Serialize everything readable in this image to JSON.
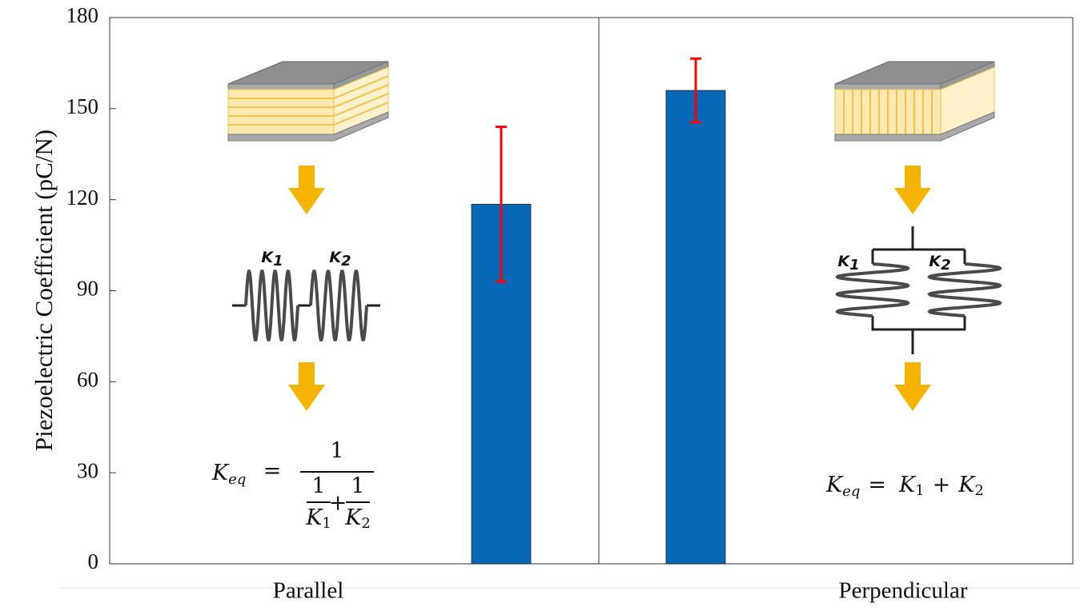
{
  "chart_data": {
    "type": "bar",
    "y_label": "Piezoelectric Coefficient (pC/N)",
    "categories": [
      "Parallel",
      "Perpendicular"
    ],
    "values": [
      118.5,
      156
    ],
    "errors": [
      25.5,
      10.5
    ],
    "color": "#0868b8",
    "error_color": "#ff0000",
    "ylim": [
      0,
      180
    ],
    "yticks": [
      0,
      30,
      60,
      90,
      120,
      150,
      180
    ],
    "grid": false
  },
  "annotations": {
    "parallel": {
      "springs": [
        {
          "base": "K",
          "sub": "1"
        },
        {
          "base": "K",
          "sub": "2"
        }
      ],
      "formula": {
        "lhs": {
          "base": "K",
          "sub": "eq"
        },
        "equals": "=",
        "numerator": "1",
        "plus": "+",
        "denominator_terms": [
          {
            "numerator": "1",
            "base": "K",
            "sub": "1"
          },
          {
            "numerator": "1",
            "base": "K",
            "sub": "2"
          }
        ]
      }
    },
    "perpendicular": {
      "springs": [
        {
          "base": "K",
          "sub": "1"
        },
        {
          "base": "K",
          "sub": "2"
        }
      ],
      "formula": {
        "lhs": {
          "base": "K",
          "sub": "eq"
        },
        "equals": "=",
        "plus": "+",
        "terms": [
          {
            "base": "K",
            "sub": "1"
          },
          {
            "base": "K",
            "sub": "2"
          }
        ]
      }
    }
  }
}
